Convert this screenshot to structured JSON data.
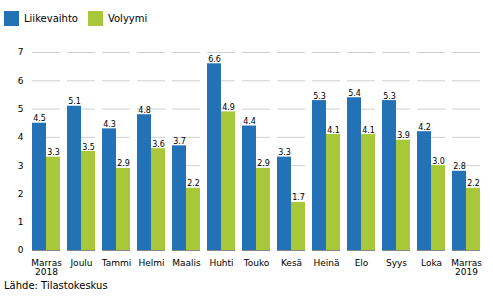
{
  "chart_data": {
    "type": "bar",
    "categories": [
      "Marras\n2018",
      "Joulu",
      "Tammi",
      "Helmi",
      "Maalis",
      "Huhti",
      "Touko",
      "Kesä",
      "Heinä",
      "Elo",
      "Syys",
      "Loka",
      "Marras\n2019"
    ],
    "series": [
      {
        "name": "Liikevaihto",
        "color": "#2272b5",
        "values": [
          4.5,
          5.1,
          4.3,
          4.8,
          3.7,
          6.6,
          4.4,
          3.3,
          5.3,
          5.4,
          5.3,
          4.2,
          2.8
        ],
        "value_labels": [
          "4.5",
          "5.1",
          "4.3",
          "4.8",
          "3.7",
          "6.6",
          "4.4",
          "3.3",
          "5.3",
          "5.4",
          "5.3",
          "4.2",
          "2.8"
        ]
      },
      {
        "name": "Volyymi",
        "color": "#a8c83a",
        "values": [
          3.3,
          3.5,
          2.9,
          3.6,
          2.2,
          4.9,
          2.9,
          1.7,
          4.1,
          4.1,
          3.9,
          3.0,
          2.2
        ],
        "value_labels": [
          "3.3",
          "3.5",
          "2.9",
          "3.6",
          "2.2",
          "4.9",
          "2.9",
          "1.7",
          "4.1",
          "4.1",
          "3.9",
          "3.0",
          "2.2"
        ]
      }
    ],
    "ylim": [
      0,
      7
    ],
    "yticks": [
      0,
      1,
      2,
      3,
      4,
      5,
      6,
      7
    ],
    "grid": true,
    "legend": "upper left",
    "data_labels": true,
    "caption": "Lähde: Tilastokeskus"
  }
}
